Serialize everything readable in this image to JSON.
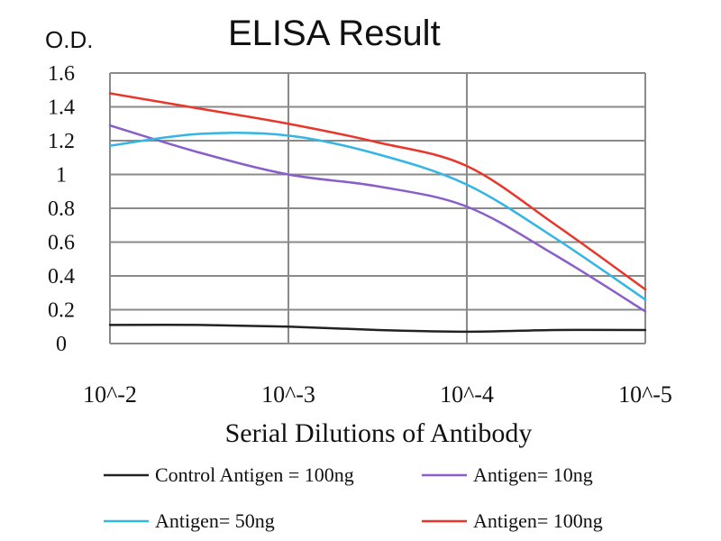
{
  "chart_data": {
    "type": "line",
    "title": "ELISA Result",
    "ylabel": "O.D.",
    "xlabel": "Serial Dilutions of Antibody",
    "categories": [
      "10^-2",
      "10^-3",
      "10^-4",
      "10^-5"
    ],
    "y_ticks": [
      "0",
      "0.2",
      "0.4",
      "0.6",
      "0.8",
      "1",
      "1.2",
      "1.4",
      "1.6"
    ],
    "ylim": [
      0,
      1.6
    ],
    "grid": true,
    "legend_position": "bottom",
    "series": [
      {
        "name": "Control Antigen = 100ng",
        "color": "#222222",
        "x": [
          0,
          0.5,
          1,
          1.5,
          2,
          2.5,
          3
        ],
        "values": [
          0.11,
          0.11,
          0.1,
          0.08,
          0.07,
          0.08,
          0.08
        ]
      },
      {
        "name": "Antigen= 10ng",
        "color": "#8a5ec8",
        "x": [
          0,
          0.5,
          1,
          1.5,
          2,
          2.5,
          3
        ],
        "values": [
          1.29,
          1.13,
          1.0,
          0.93,
          0.81,
          0.52,
          0.19
        ]
      },
      {
        "name": "Antigen= 50ng",
        "color": "#33b5e5",
        "x": [
          0,
          0.5,
          1,
          1.5,
          2,
          2.5,
          3
        ],
        "values": [
          1.17,
          1.24,
          1.23,
          1.12,
          0.94,
          0.62,
          0.26
        ]
      },
      {
        "name": "Antigen= 100ng",
        "color": "#e8362a",
        "x": [
          0,
          0.5,
          1,
          1.5,
          2,
          2.5,
          3
        ],
        "values": [
          1.48,
          1.39,
          1.3,
          1.19,
          1.05,
          0.7,
          0.32
        ]
      }
    ]
  }
}
